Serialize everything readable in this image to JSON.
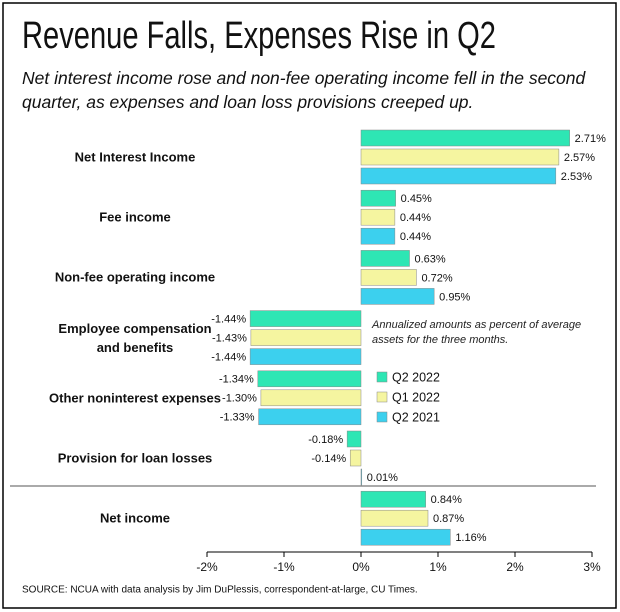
{
  "chart_data": {
    "type": "barh",
    "title": "Revenue Falls, Expenses Rise in Q2",
    "subtitle": "Net interest income rose and non-fee operating income fell in the second quarter, as expenses and loan loss provisions creeped up.",
    "annotation": "Annualized amounts as percent of average assets for the three months.",
    "source": "SOURCE: NCUA with data analysis by Jim DuPlessis, correspondent-at-large, CU Times.",
    "categories": [
      "Net Interest Income",
      "Fee income",
      "Non-fee operating income",
      "Employee compensation\nand benefits",
      "Other noninterest expenses",
      "Provision for loan losses",
      "Net income"
    ],
    "series": [
      {
        "name": "Q2 2022",
        "color": "#2ee6b4",
        "values": [
          2.71,
          0.45,
          0.63,
          -1.44,
          -1.34,
          -0.18,
          0.84
        ],
        "value_labels": [
          "2.71%",
          "0.45%",
          "0.63%",
          "-1.44%",
          "-1.34%",
          "-0.18%",
          "0.84%"
        ]
      },
      {
        "name": "Q1 2022",
        "color": "#f5f5a0",
        "values": [
          2.57,
          0.44,
          0.72,
          -1.43,
          -1.3,
          -0.14,
          0.87
        ],
        "value_labels": [
          "2.57%",
          "0.44%",
          "0.72%",
          "-1.43%",
          "-1.30%",
          "-0.14%",
          "0.87%"
        ]
      },
      {
        "name": "Q2 2021",
        "color": "#3cd0ee",
        "values": [
          2.53,
          0.44,
          0.95,
          -1.44,
          -1.33,
          0.01,
          1.16
        ],
        "value_labels": [
          "2.53%",
          "0.44%",
          "0.95%",
          "-1.44%",
          "-1.33%",
          "0.01%",
          "1.16%"
        ]
      }
    ],
    "xlim": [
      -2,
      3
    ],
    "xticks": [
      {
        "value": -2,
        "label": "-2%"
      },
      {
        "value": -1,
        "label": "-1%"
      },
      {
        "value": 0,
        "label": "0%"
      },
      {
        "value": 1,
        "label": "1%"
      },
      {
        "value": 2,
        "label": "2%"
      },
      {
        "value": 3,
        "label": "3%"
      }
    ]
  }
}
